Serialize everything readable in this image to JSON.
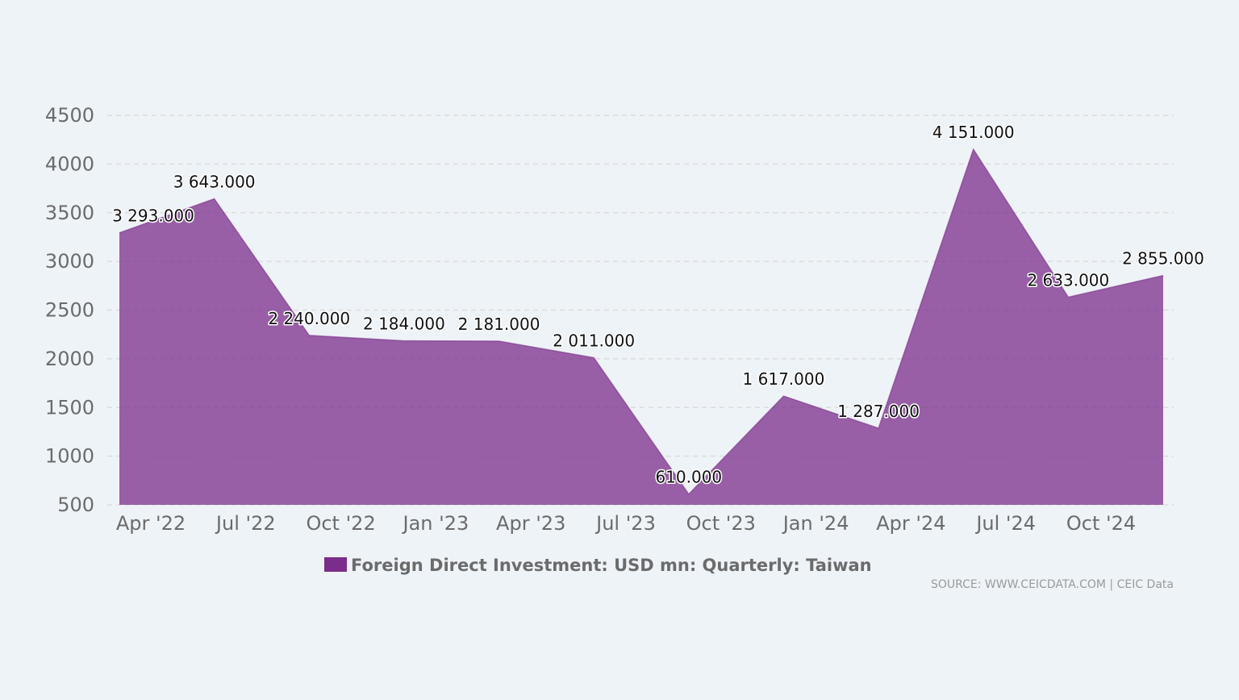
{
  "chart_data": {
    "type": "area",
    "title": "",
    "xlabel": "",
    "ylabel": "",
    "ylim": [
      500,
      4500
    ],
    "yticks": [
      "4500",
      "4000",
      "3500",
      "3000",
      "2500",
      "2000",
      "1500",
      "1000",
      "500"
    ],
    "ytick_values": [
      4500,
      4000,
      3500,
      3000,
      2500,
      2000,
      1500,
      1000,
      500
    ],
    "xticks": [
      "Apr '22",
      "Jul '22",
      "Oct '22",
      "Jan '23",
      "Apr '23",
      "Jul '23",
      "Oct '23",
      "Jan '24",
      "Apr '24",
      "Jul '24",
      "Oct '24"
    ],
    "grid": true,
    "series": [
      {
        "name": "Foreign Direct Investment: USD mn: Quarterly: Taiwan",
        "color": "#7b2d8b",
        "values": [
          3293,
          3643,
          2240,
          2184,
          2181,
          2011,
          610,
          1617,
          1287,
          4151,
          2633,
          2855
        ],
        "labels": [
          "3 293.000",
          "3 643.000",
          "2 240.000",
          "2 184.000",
          "2 181.000",
          "2 011.000",
          "610.000",
          "1 617.000",
          "1 287.000",
          "4 151.000",
          "2 633.000",
          "2 855.000"
        ]
      }
    ],
    "legend": "bottom-center",
    "source": "SOURCE: WWW.CEICDATA.COM | CEIC Data"
  }
}
